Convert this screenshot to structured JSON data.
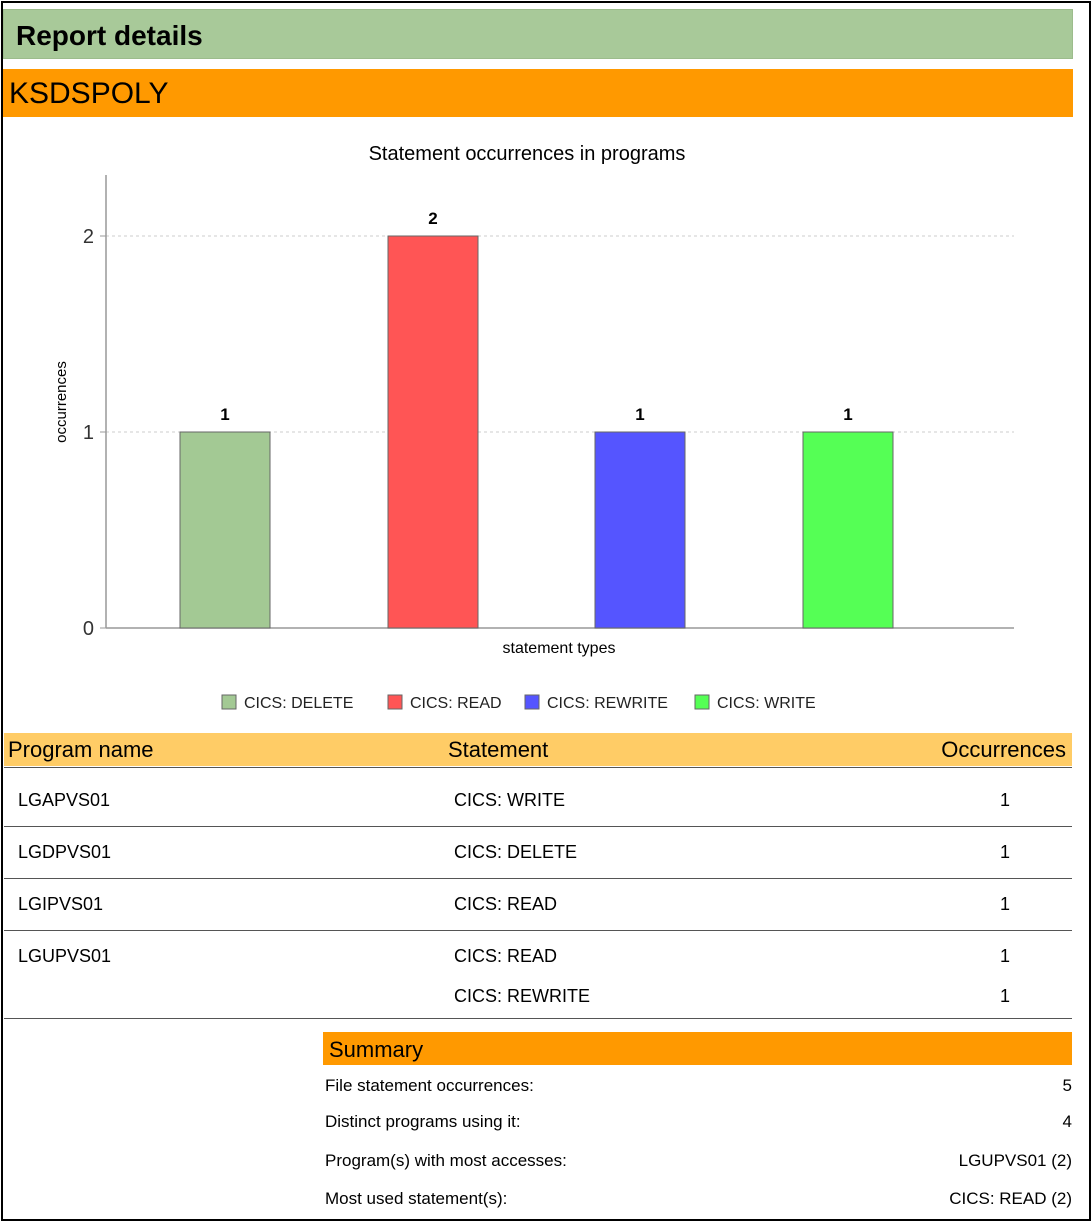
{
  "page": {
    "title": "Report details",
    "file_name": "KSDSPOLY"
  },
  "chart_data": {
    "type": "bar",
    "title": "Statement occurrences in programs",
    "xlabel": "statement types",
    "ylabel": "occurrences",
    "ylim": [
      0,
      2.3
    ],
    "yticks": [
      "0",
      "1",
      "2"
    ],
    "grid": true,
    "legend_position": "bottom",
    "categories": [
      "CICS:  DELETE",
      "CICS: READ",
      "CICS: REWRITE",
      "CICS: WRITE"
    ],
    "values": [
      1,
      2,
      1,
      1
    ],
    "value_labels": [
      "1",
      "2",
      "1",
      "1"
    ],
    "colors": [
      "#a3c994",
      "#ff5555",
      "#5555ff",
      "#55ff55"
    ]
  },
  "table": {
    "headers": {
      "program": "Program name",
      "statement": "Statement",
      "occurrences": "Occurrences"
    },
    "rows": [
      {
        "program": "LGAPVS01",
        "statements": [
          {
            "statement": "CICS: WRITE",
            "count": "1"
          }
        ]
      },
      {
        "program": "LGDPVS01",
        "statements": [
          {
            "statement": "CICS:  DELETE",
            "count": "1"
          }
        ]
      },
      {
        "program": "LGIPVS01",
        "statements": [
          {
            "statement": "CICS: READ",
            "count": "1"
          }
        ]
      },
      {
        "program": "LGUPVS01",
        "statements": [
          {
            "statement": "CICS: READ",
            "count": "1"
          },
          {
            "statement": "CICS: REWRITE",
            "count": "1"
          }
        ]
      }
    ]
  },
  "summary": {
    "title": "Summary",
    "items": [
      {
        "label": "File statement occurrences:",
        "value": "5"
      },
      {
        "label": "Distinct programs using it:",
        "value": "4"
      },
      {
        "label": "Program(s) with most accesses:",
        "value": "LGUPVS01 (2)"
      },
      {
        "label": "Most used statement(s):",
        "value": "CICS: READ (2)"
      }
    ]
  }
}
